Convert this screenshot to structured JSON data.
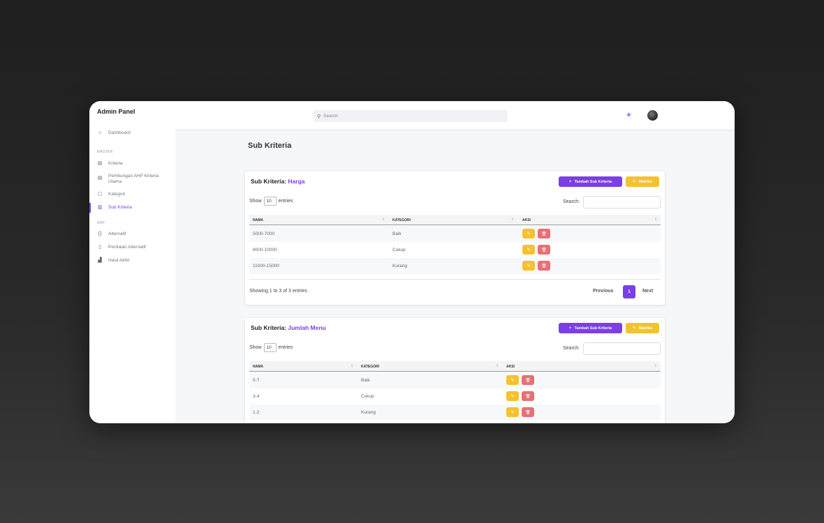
{
  "app": {
    "title": "Admin Panel"
  },
  "sidebar": {
    "dashboard": "Dashboard",
    "section_master": "MASTER",
    "kriteria": "Kriteria",
    "perhitungan_1": "Perhitungan AHP Kriteria",
    "perhitungan_2": "Utama",
    "kategori": "Kategori",
    "sub_kriteria": "Sub Kriteria",
    "section_ahp": "AHP",
    "alternatif": "Alternatif",
    "penilaian": "Penilaian Alternatif",
    "hasil": "Hasil Akhir"
  },
  "topbar": {
    "search_placeholder": "Search"
  },
  "page": {
    "title": "Sub Kriteria"
  },
  "cards": [
    {
      "title_prefix": "Sub Kriteria:",
      "title_name": "Harga",
      "add_label": "Tambah Sub Kriteria",
      "matrix_label": "Matriks",
      "show_label": "Show",
      "entries_value": "10",
      "entries_label": "entries",
      "search_label": "Search:",
      "columns": [
        "NAMA",
        "KATEGORI",
        "AKSI"
      ],
      "rows": [
        {
          "nama": "5000-7000",
          "kategori": "Baik"
        },
        {
          "nama": "8000-10000",
          "kategori": "Cukup"
        },
        {
          "nama": "11000-15000",
          "kategori": "Kurang"
        }
      ],
      "info": "Showing 1 to 3 of 3 entries",
      "prev": "Previous",
      "page": "1",
      "next": "Next"
    },
    {
      "title_prefix": "Sub Kriteria:",
      "title_name": "Jumlah Menu",
      "add_label": "Tambah Sub Kriteria",
      "matrix_label": "Matriks",
      "show_label": "Show",
      "entries_value": "10",
      "entries_label": "entries",
      "search_label": "Search:",
      "columns": [
        "NAMA",
        "KATEGORI",
        "AKSI"
      ],
      "rows": [
        {
          "nama": "5-7",
          "kategori": "Baik"
        },
        {
          "nama": "3-4",
          "kategori": "Cukup"
        },
        {
          "nama": "1-2",
          "kategori": "Kurang"
        }
      ]
    }
  ],
  "icons": {
    "home": "home-icon",
    "table": "table-icon",
    "box": "box-icon",
    "braces": "braces-icon",
    "clipboard": "clipboard-icon",
    "chart": "bar-chart-icon",
    "sun": "sun-icon",
    "edit": "pencil-icon",
    "delete": "trash-icon",
    "plus": "plus-icon"
  },
  "colors": {
    "accent": "#7b3fe4",
    "warning": "#f4c230",
    "danger": "#e86f76"
  }
}
